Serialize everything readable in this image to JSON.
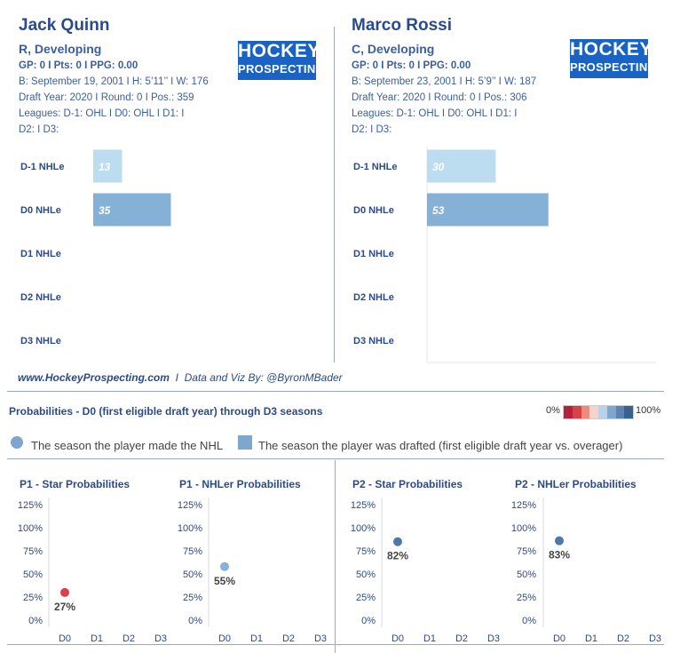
{
  "players": [
    {
      "name": "Jack Quinn",
      "position": "R, Developing",
      "stats": "GP: 0 I Pts: 0 I PPG: 0.00",
      "bio": "B: September 19, 2001 I H: 5’11’’ I W: 176",
      "draft": "Draft Year: 2020 I Round: 0 I Pos.: 359",
      "leagues": "Leagues: D-1: OHL I D0: OHL I D1:  I",
      "leagues2": "D2:  I D3:",
      "logo": {
        "line1": "HOCKEY",
        "line2": "PROSPECTING"
      }
    },
    {
      "name": "Marco Rossi",
      "position": "C, Developing",
      "stats": "GP: 0 I Pts: 0 I PPG: 0.00",
      "bio": "B: September 23, 2001 I H: 5’9’’ I W: 187",
      "draft": "Draft Year: 2020 I Round: 0 I Pos.: 306",
      "leagues": "Leagues: D-1: OHL I D0: OHL I D1:  I",
      "leagues2": "D2:  I D3:",
      "logo": {
        "line1": "HOCKEY",
        "line2": "PROSPECTING"
      }
    }
  ],
  "footer": {
    "site": "www.HockeyProspecting.com",
    "sep": "I",
    "credit": "Data and Viz By: @ByronMBader"
  },
  "probabilities": {
    "title": "Probabilities - D0 (first eligible draft year) through D3 seasons",
    "scale_low": "0%",
    "scale_high": "100%",
    "scale_colors": [
      "#b5213a",
      "#d9404a",
      "#ee8a78",
      "#f5d3c8",
      "#b8d2e8",
      "#7ea6cf",
      "#5b84b3",
      "#3a628f"
    ],
    "legend_circle": "The season the player made the NHL",
    "legend_square": "The season the player was drafted (first eligible draft year vs. overager)"
  },
  "chart_data": [
    {
      "type": "bar",
      "orientation": "horizontal",
      "player": "Jack Quinn",
      "categories": [
        "D-1 NHLe",
        "D0 NHLe",
        "D1 NHLe",
        "D2 NHLe",
        "D3 NHLe"
      ],
      "values": [
        13,
        35,
        null,
        null,
        null
      ],
      "colors": [
        "#bcdcf0",
        "#85b1d7"
      ],
      "xlim": [
        0,
        100
      ]
    },
    {
      "type": "bar",
      "orientation": "horizontal",
      "player": "Marco Rossi",
      "categories": [
        "D-1 NHLe",
        "D0 NHLe",
        "D1 NHLe",
        "D2 NHLe",
        "D3 NHLe"
      ],
      "values": [
        30,
        53,
        null,
        null,
        null
      ],
      "colors": [
        "#bcdcf0",
        "#85b1d7"
      ],
      "xlim": [
        0,
        100
      ]
    },
    {
      "type": "scatter",
      "title": "P1 - Star Probabilities",
      "categories": [
        "D0",
        "D1",
        "D2",
        "D3"
      ],
      "yticks": [
        "0%",
        "25%",
        "50%",
        "75%",
        "100%",
        "125%"
      ],
      "ylim": [
        0,
        125
      ],
      "points": [
        {
          "x": "D0",
          "y": 27,
          "label": "27%",
          "color": "#d9404a"
        }
      ]
    },
    {
      "type": "scatter",
      "title": "P1 - NHLer Probabilities",
      "categories": [
        "D0",
        "D1",
        "D2",
        "D3"
      ],
      "yticks": [
        "0%",
        "25%",
        "50%",
        "75%",
        "100%",
        "125%"
      ],
      "ylim": [
        0,
        125
      ],
      "points": [
        {
          "x": "D0",
          "y": 55,
          "label": "55%",
          "color": "#8ab2d8"
        }
      ]
    },
    {
      "type": "scatter",
      "title": "P2 - Star Probabilities",
      "categories": [
        "D0",
        "D1",
        "D2",
        "D3"
      ],
      "yticks": [
        "0%",
        "25%",
        "50%",
        "75%",
        "100%",
        "125%"
      ],
      "ylim": [
        0,
        125
      ],
      "points": [
        {
          "x": "D0",
          "y": 82,
          "label": "82%",
          "color": "#4e79a7"
        }
      ]
    },
    {
      "type": "scatter",
      "title": "P2 - NHLer Probabilities",
      "categories": [
        "D0",
        "D1",
        "D2",
        "D3"
      ],
      "yticks": [
        "0%",
        "25%",
        "50%",
        "75%",
        "100%",
        "125%"
      ],
      "ylim": [
        0,
        125
      ],
      "points": [
        {
          "x": "D0",
          "y": 83,
          "label": "83%",
          "color": "#4e79a7"
        }
      ]
    }
  ]
}
